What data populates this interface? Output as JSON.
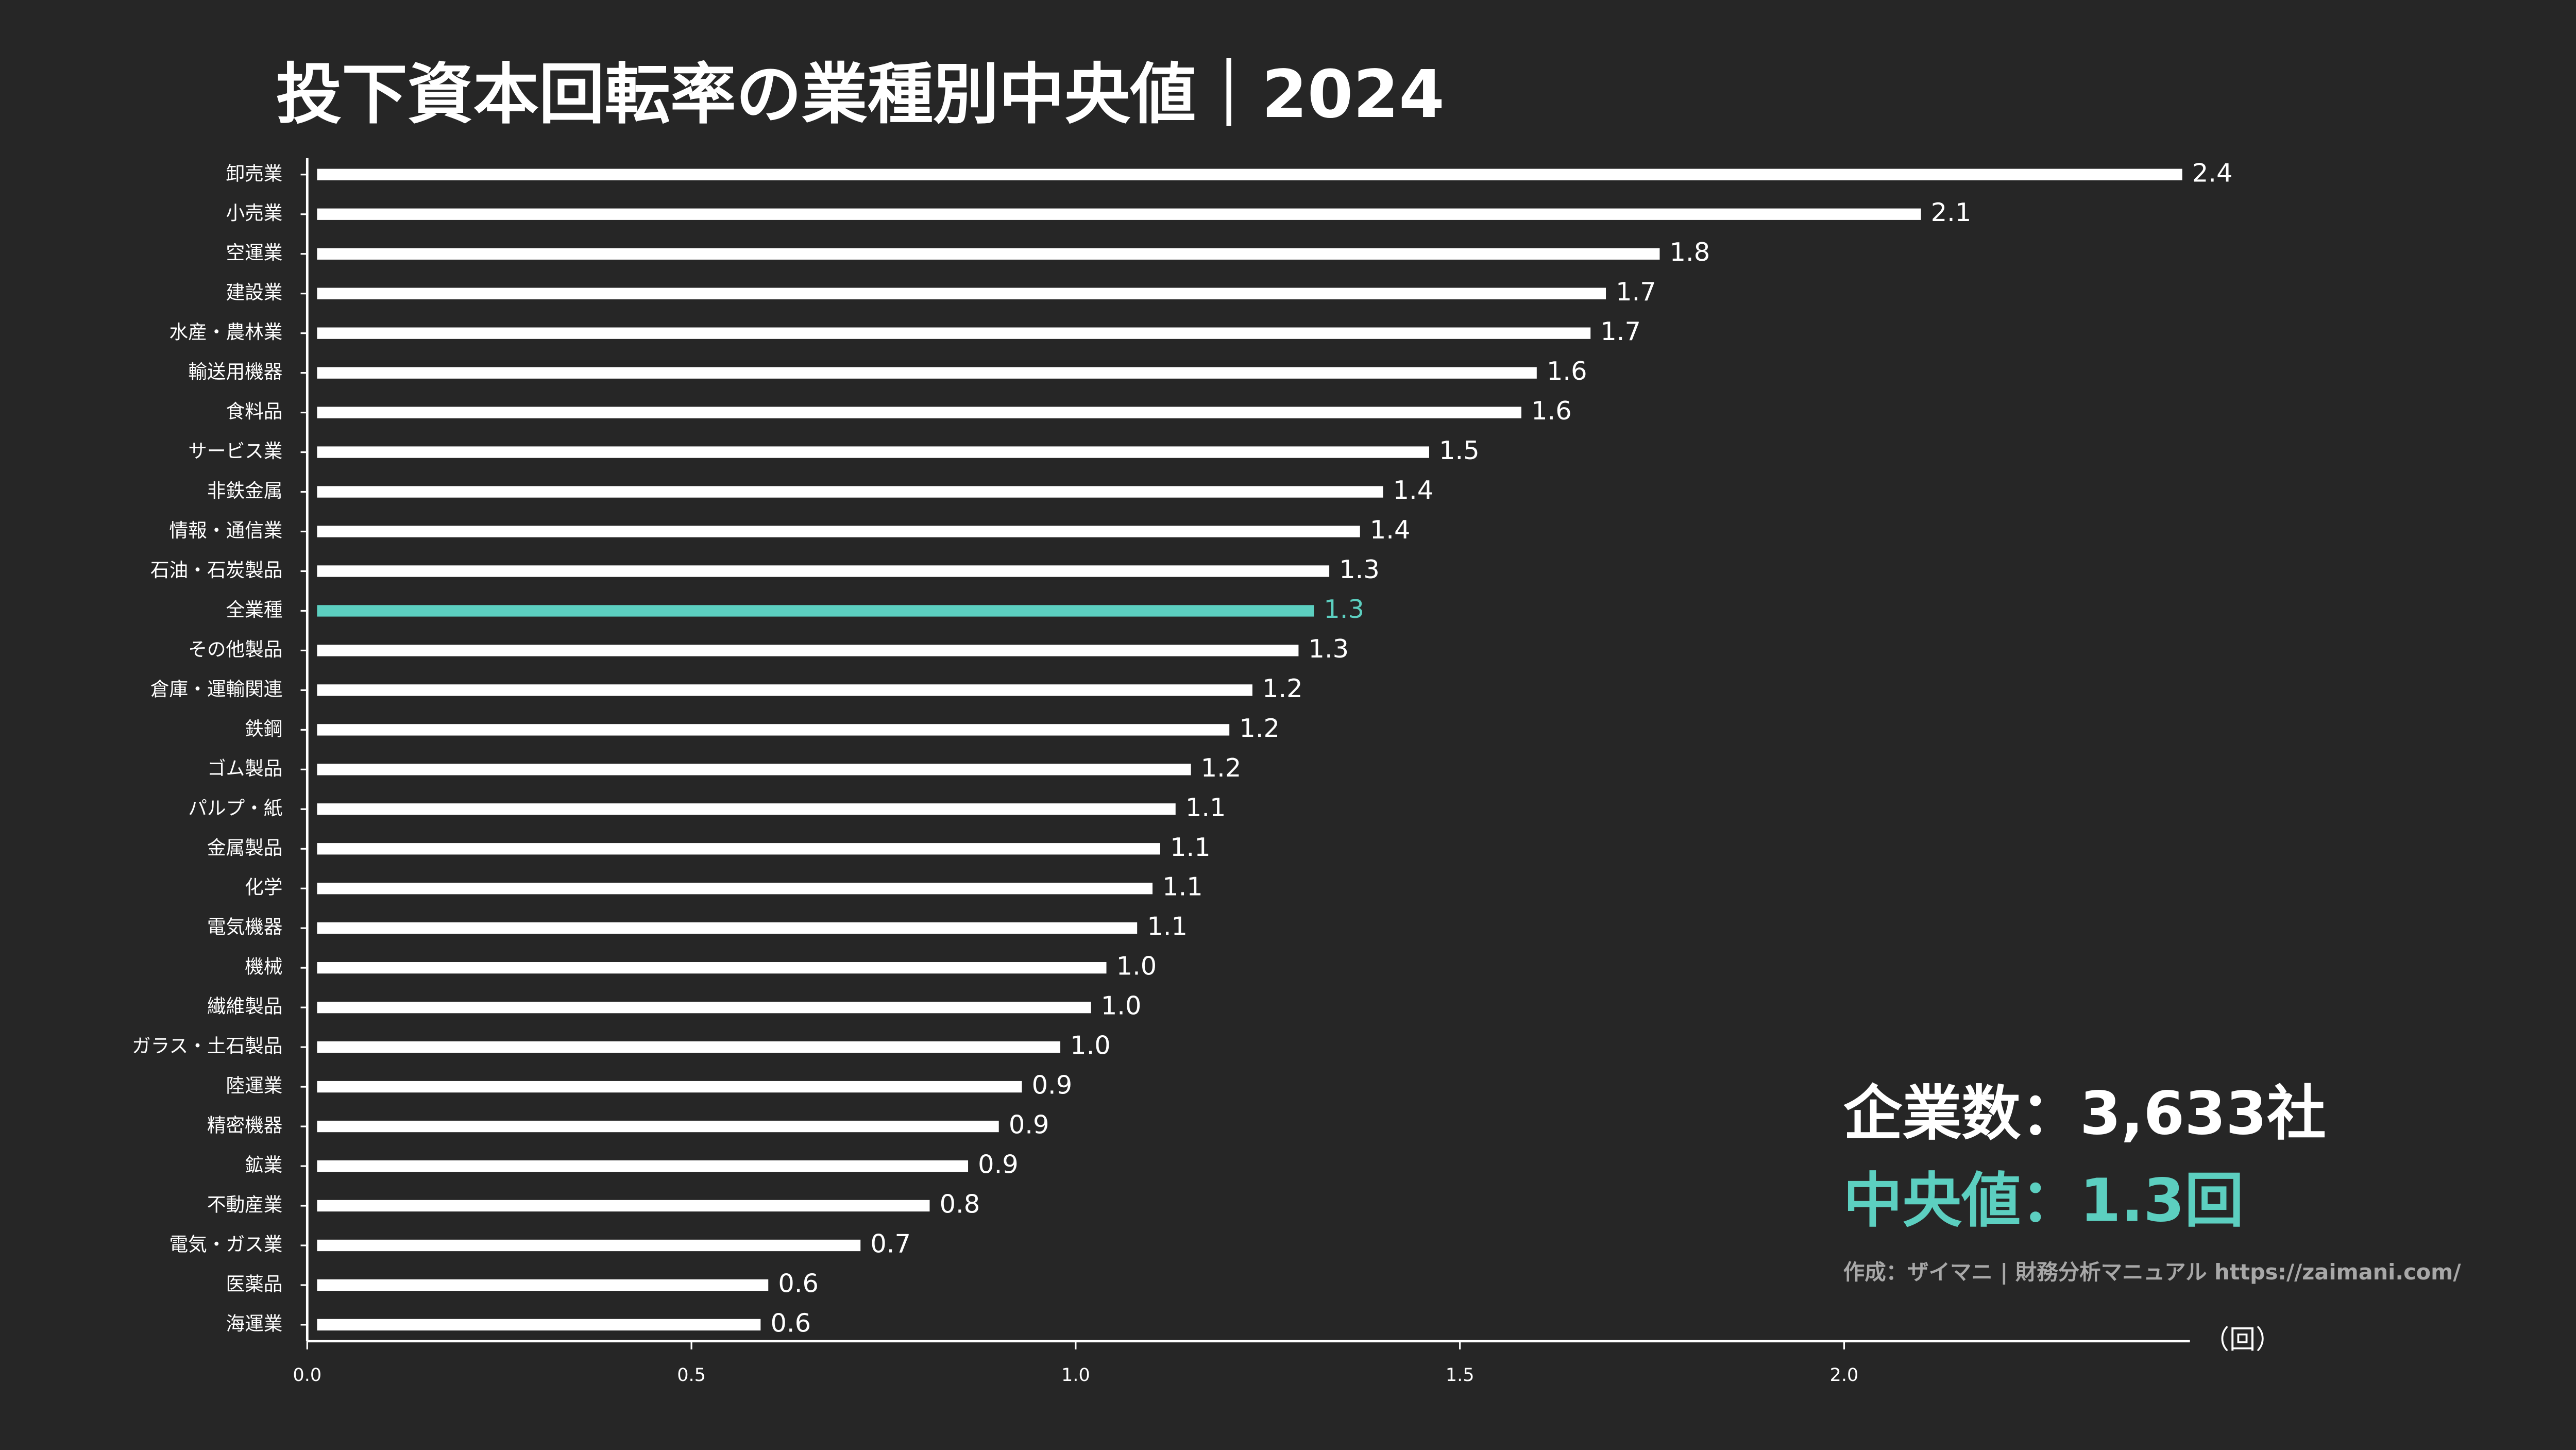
{
  "chart_data": {
    "type": "barh",
    "title": "投下資本回転率の業種別中央値｜2024",
    "x_label": "（回）",
    "annotations": [
      "企業数：3,633社",
      "中央値：1.3回",
      "作成：ザイマニ | 財務分析マニュアル https://zaimani.com/"
    ],
    "annotation_colors": [
      "#ffffff",
      "#5ccfc0",
      "#a8a8a8"
    ],
    "categories": [
      "卸売業",
      "小売業",
      "空運業",
      "建設業",
      "水産・農林業",
      "輸送用機器",
      "食料品",
      "サービス業",
      "非鉄金属",
      "情報・通信業",
      "石油・石炭製品",
      "全業種",
      "その他製品",
      "倉庫・運輸関連",
      "鉄鋼",
      "ゴム製品",
      "パルプ・紙",
      "金属製品",
      "化学",
      "電気機器",
      "機械",
      "繊維製品",
      "ガラス・土石製品",
      "陸運業",
      "精密機器",
      "鉱業",
      "不動産業",
      "電気・ガス業",
      "医薬品",
      "海運業"
    ],
    "values": [
      2.44,
      2.1,
      1.76,
      1.69,
      1.67,
      1.6,
      1.58,
      1.46,
      1.4,
      1.37,
      1.33,
      1.31,
      1.29,
      1.23,
      1.2,
      1.15,
      1.13,
      1.11,
      1.1,
      1.08,
      1.04,
      1.02,
      0.98,
      0.93,
      0.9,
      0.86,
      0.81,
      0.72,
      0.6,
      0.59
    ],
    "value_labels": [
      "2.4",
      "2.1",
      "1.8",
      "1.7",
      "1.7",
      "1.6",
      "1.6",
      "1.5",
      "1.4",
      "1.4",
      "1.3",
      "1.3",
      "1.3",
      "1.2",
      "1.2",
      "1.2",
      "1.1",
      "1.1",
      "1.1",
      "1.1",
      "1.0",
      "1.0",
      "1.0",
      "0.9",
      "0.9",
      "0.9",
      "0.8",
      "0.7",
      "0.6",
      "0.6"
    ],
    "colors": [
      "#ffffff",
      "#ffffff",
      "#ffffff",
      "#ffffff",
      "#ffffff",
      "#ffffff",
      "#ffffff",
      "#ffffff",
      "#ffffff",
      "#ffffff",
      "#ffffff",
      "#5ccfc0",
      "#ffffff",
      "#ffffff",
      "#ffffff",
      "#ffffff",
      "#ffffff",
      "#ffffff",
      "#ffffff",
      "#ffffff",
      "#ffffff",
      "#ffffff",
      "#ffffff",
      "#ffffff",
      "#ffffff",
      "#ffffff",
      "#ffffff",
      "#ffffff",
      "#ffffff",
      "#ffffff"
    ],
    "xlim": [
      0,
      2.45
    ],
    "xticks": [
      {
        "value": 0,
        "label": "0.0"
      },
      0.5,
      {
        "value": 1,
        "label": "1.0"
      },
      1.5,
      {
        "value": 2,
        "label": "2.0"
      }
    ],
    "grid": false
  }
}
